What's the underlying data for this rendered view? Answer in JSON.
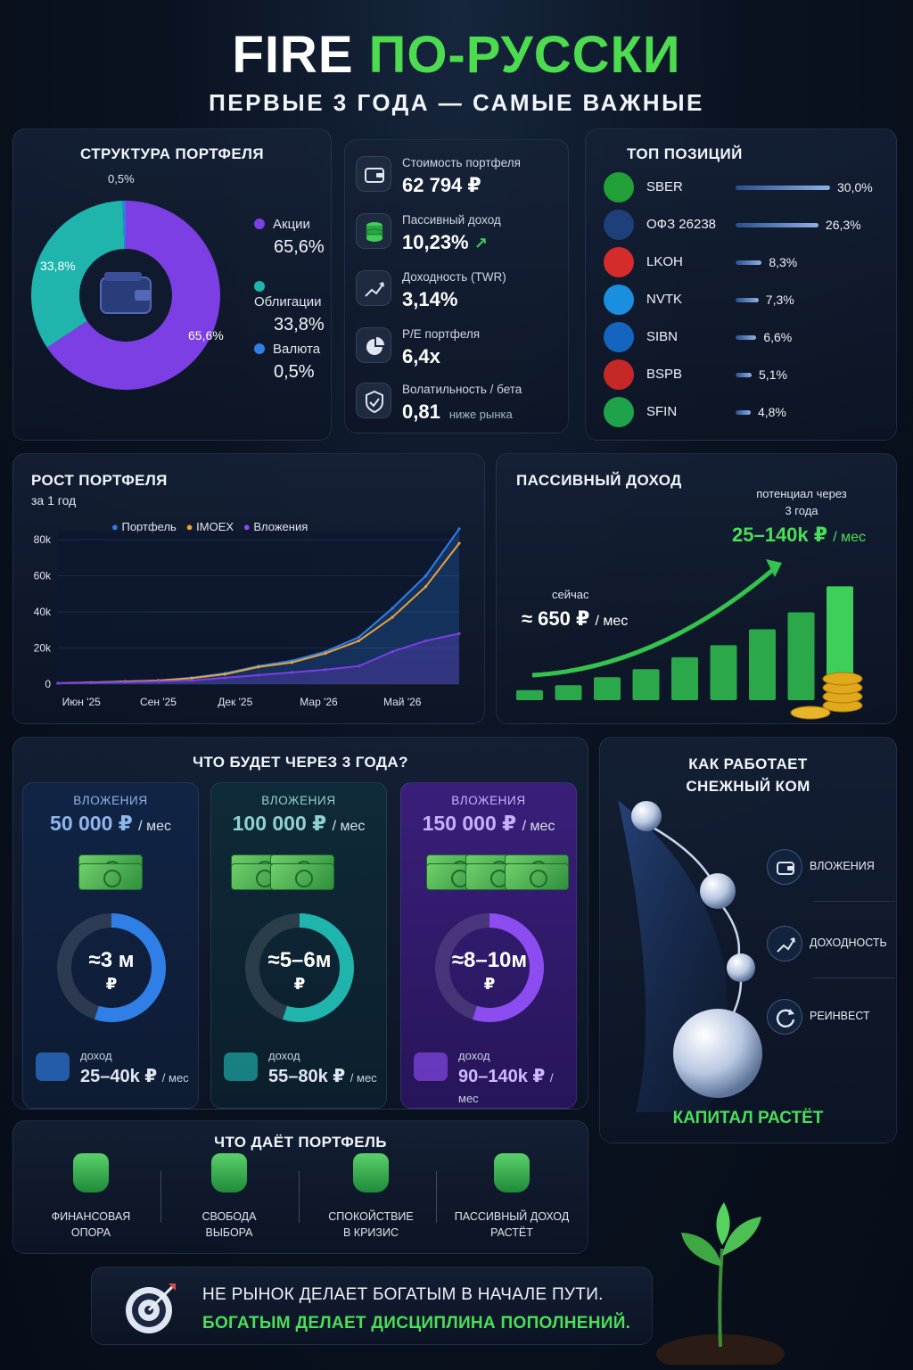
{
  "header": {
    "title_main": "FIRE ",
    "title_accent": "ПО-РУССКИ",
    "subtitle": "ПЕРВЫЕ 3 ГОДА — САМЫЕ ВАЖНЫЕ"
  },
  "structure": {
    "title": "СТРУКТУРА ПОРТФЕЛЯ",
    "center_icon": "wallet-icon",
    "slices": [
      {
        "name": "Акции",
        "value_label": "65,6%",
        "value": 65.6,
        "color": "#7b3fe4"
      },
      {
        "name": "Облигации",
        "value_label": "33,8%",
        "value": 33.8,
        "color": "#1fb5ad"
      },
      {
        "name": "Валюта",
        "value_label": "0,5%",
        "value": 0.5,
        "color": "#2f7fe6"
      }
    ]
  },
  "metrics": [
    {
      "label": "Стоимость портфеля",
      "value": "62 794 ₽",
      "icon": "wallet-icon"
    },
    {
      "label": "Пассивный доход",
      "value": "10,23%",
      "icon": "coins-icon"
    },
    {
      "label": "Доходность (TWR)",
      "value": "3,14%",
      "icon": "growth-chart-icon"
    },
    {
      "label": "P/E портфеля",
      "value": "6,4x",
      "icon": "pie-icon"
    },
    {
      "label": "Волатильность / бета",
      "value": "0,81",
      "note": "ниже рынка",
      "icon": "shield-icon"
    }
  ],
  "top": {
    "title": "ТОП ПОЗИЦИЙ",
    "items": [
      {
        "ticker": "SBER",
        "pct_label": "30,0%",
        "pct": 30.0,
        "color": "#21a038",
        "icon": "sber-logo-icon"
      },
      {
        "ticker": "ОФЗ 26238",
        "pct_label": "26,3%",
        "pct": 26.3,
        "color": "#1f3f7a",
        "icon": "emblem-icon"
      },
      {
        "ticker": "LKOH",
        "pct_label": "8,3%",
        "pct": 8.3,
        "color": "#d42b2b",
        "icon": "lukoil-logo-icon"
      },
      {
        "ticker": "NVTK",
        "pct_label": "7,3%",
        "pct": 7.3,
        "color": "#1a8fe0",
        "icon": "novatek-logo-icon"
      },
      {
        "ticker": "SIBN",
        "pct_label": "6,6%",
        "pct": 6.6,
        "color": "#1565c0",
        "icon": "gazpromneft-logo-icon"
      },
      {
        "ticker": "BSPB",
        "pct_label": "5,1%",
        "pct": 5.1,
        "color": "#c62828",
        "icon": "bspb-logo-icon"
      },
      {
        "ticker": "SFIN",
        "pct_label": "4,8%",
        "pct": 4.8,
        "color": "#1fa34a",
        "icon": "dollar-icon"
      }
    ]
  },
  "chart_data": [
    {
      "type": "line",
      "title": "РОСТ ПОРТФЕЛЯ",
      "subtitle": "за 1 год",
      "x_ticks": [
        "Июн '25",
        "Сен '25",
        "Дек '25",
        "Мар '26",
        "Май '26"
      ],
      "y_ticks": [
        "0",
        "20k",
        "40k",
        "60k",
        "80k"
      ],
      "ylim": [
        0,
        85000
      ],
      "legend": "top",
      "x": [
        "2025-06",
        "2025-07",
        "2025-08",
        "2025-09",
        "2025-10",
        "2025-11",
        "2025-12",
        "2026-01",
        "2026-02",
        "2026-03",
        "2026-04",
        "2026-05",
        "2026-06"
      ],
      "series": [
        {
          "name": "Портфель",
          "color": "#2f7fe6",
          "values": [
            500,
            900,
            1500,
            2000,
            3500,
            6000,
            10000,
            13000,
            18000,
            26000,
            42000,
            60000,
            86000
          ]
        },
        {
          "name": "IMOEX",
          "color": "#e9a23b",
          "values": [
            500,
            900,
            1400,
            2000,
            3300,
            5500,
            9500,
            12000,
            17000,
            24000,
            37000,
            54000,
            78000
          ]
        },
        {
          "name": "Вложения",
          "color": "#7b3fe4",
          "values": [
            500,
            700,
            1000,
            1500,
            2000,
            3500,
            5000,
            6500,
            8000,
            10000,
            18000,
            24000,
            28000
          ]
        }
      ]
    },
    {
      "type": "bar",
      "title": "ПАССИВНЫЙ ДОХОД",
      "values": [
        1,
        1.5,
        2.3,
        3.1,
        4.3,
        5.5,
        7.1,
        8.8,
        11.4
      ]
    }
  ],
  "passive": {
    "now_label": "сейчас",
    "now_value": "≈ 650 ₽",
    "now_unit": "/ мес",
    "potential_label_1": "потенциал через",
    "potential_label_2": "3 года",
    "potential_value": "25–140k ₽",
    "potential_unit": "/ мес"
  },
  "future": {
    "title": "ЧТО БУДЕТ ЧЕРЕЗ 3 ГОДА?",
    "cards": [
      {
        "head": "ВЛОЖЕНИЯ",
        "amount": "50 000 ₽",
        "unit": "/ мес",
        "ring_line1": "≈3 м",
        "ring_line2": "₽",
        "ring_fill": 0.55,
        "income_label": "доход",
        "income": "25–40k ₽",
        "income_unit": "/ мес",
        "accent": "#2f7fe6"
      },
      {
        "head": "ВЛОЖЕНИЯ",
        "amount": "100 000 ₽",
        "unit": "/ мес",
        "ring_line1": "≈5–6м",
        "ring_line2": "₽",
        "ring_fill": 0.55,
        "income_label": "доход",
        "income": "55–80k ₽",
        "income_unit": "/ мес",
        "accent": "#1fb5ad"
      },
      {
        "head": "ВЛОЖЕНИЯ",
        "amount": "150 000 ₽",
        "unit": "/ мес",
        "ring_line1": "≈8–10м",
        "ring_line2": "₽",
        "ring_fill": 0.55,
        "income_label": "доход",
        "income": "90–140k ₽",
        "income_unit": "/ мес",
        "accent": "#8b4cf0"
      }
    ]
  },
  "snowball": {
    "title_1": "КАК РАБОТАЕТ",
    "title_2": "СНЕЖНЫЙ КОМ",
    "steps": [
      {
        "label": "ВЛОЖЕНИЯ",
        "icon": "wallet-icon"
      },
      {
        "label": "ДОХОДНОСТЬ",
        "icon": "growth-chart-icon"
      },
      {
        "label": "РЕИНВЕСТ",
        "icon": "refresh-icon"
      }
    ],
    "footer": "КАПИТАЛ РАСТЁТ"
  },
  "benefits": {
    "title": "ЧТО ДАЁТ ПОРТФЕЛЬ",
    "items": [
      {
        "line1": "ФИНАНСОВАЯ",
        "line2": "ОПОРА",
        "icon": "shield-question-icon"
      },
      {
        "line1": "СВОБОДА",
        "line2": "ВЫБОРА",
        "icon": "lightbulb-icon"
      },
      {
        "line1": "СПОКОЙСТВИЕ",
        "line2": "В КРИЗИС",
        "icon": "person-icon"
      },
      {
        "line1": "ПАССИВНЫЙ ДОХОД",
        "line2": "РАСТЁТ",
        "icon": "money-wallet-icon"
      }
    ]
  },
  "quote": {
    "line1": "НЕ РЫНОК ДЕЛАЕТ БОГАТЫМ В НАЧАЛЕ ПУТИ.",
    "line2": "БОГАТЫМ ДЕЛАЕТ ДИСЦИПЛИНА ПОПОЛНЕНИЙ.",
    "icon": "target-icon"
  }
}
